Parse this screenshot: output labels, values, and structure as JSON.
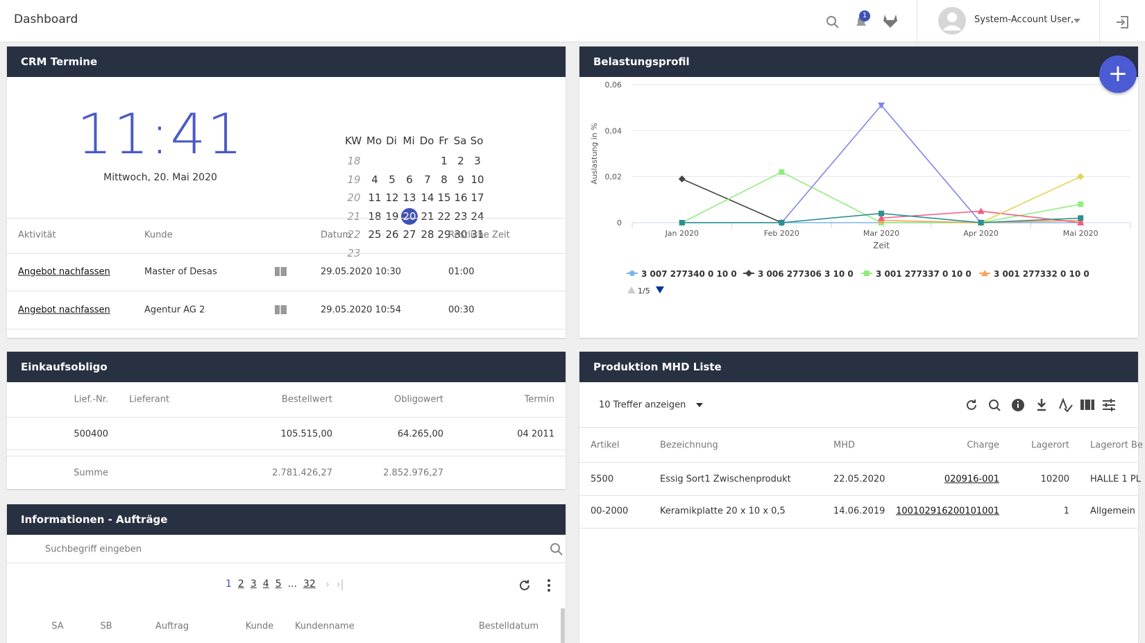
{
  "header": {
    "title": "Dashboard",
    "notification_count": "1",
    "user": "System-Account User,"
  },
  "crm": {
    "title": "CRM Termine",
    "time": "11:41",
    "date": "Mittwoch, 20. Mai 2020",
    "calendar": {
      "headers": [
        "KW",
        "Mo",
        "Di",
        "Mi",
        "Do",
        "Fr",
        "Sa",
        "So"
      ],
      "weeks": [
        [
          "18",
          null,
          null,
          null,
          null,
          "1",
          "2",
          "3"
        ],
        [
          "19",
          "4",
          "5",
          "6",
          "7",
          "8",
          "9",
          "10"
        ],
        [
          "20",
          "11",
          "12",
          "13",
          "14",
          "15",
          "16",
          "17"
        ],
        [
          "21",
          "18",
          "19",
          "20",
          "21",
          "22",
          "23",
          "24"
        ],
        [
          "22",
          "25",
          "26",
          "27",
          "28",
          "29",
          "30",
          "31"
        ],
        [
          "23",
          null,
          null,
          null,
          null,
          null,
          null,
          null
        ]
      ],
      "selected": "20"
    },
    "table": {
      "columns": [
        "Aktivität",
        "Kunde",
        "Datum",
        "Restliche Zeit"
      ],
      "rows": [
        [
          "Angebot nachfassen",
          "Master of Desas",
          "29.05.2020 10:30",
          "01:00"
        ],
        [
          "Angebot nachfassen",
          "Agentur AG 2",
          "29.05.2020 10:54",
          "00:30"
        ]
      ]
    }
  },
  "einkauf": {
    "title": "Einkaufsobligo",
    "columns": [
      "Lief.-Nr.",
      "Lieferant",
      "Bestellwert",
      "Obligowert",
      "Termin"
    ],
    "rows": [
      [
        "500400",
        null,
        "105.515,00",
        "64.265,00",
        "04 2011"
      ]
    ],
    "sum": [
      "Summe",
      null,
      "2.781.426,27",
      "2.852.976,27",
      null
    ]
  },
  "info": {
    "title": "Informationen - Aufträge",
    "search": "Suchbegriff eingeben",
    "pages": [
      "1",
      "2",
      "3",
      "4",
      "5",
      "...",
      "32"
    ],
    "columns": [
      "SA",
      "SB",
      "Auftrag",
      "Kunde",
      "Kundenname",
      "Bestelldatum"
    ]
  },
  "mhd": {
    "title": "Produktion MHD Liste",
    "page_size": "10 Treffer anzeigen",
    "columns": [
      "Artikel",
      "Bezeichnung",
      "MHD",
      "Charge",
      "Lagerort",
      "Lagerort Be"
    ],
    "rows": [
      [
        "5500",
        "Essig Sort1 Zwischenprodukt",
        "22.05.2020",
        "020916-001",
        "10200",
        "HALLE 1 PL"
      ],
      [
        "00-2000",
        "Keramikplatte 20 x 10 x 0,5",
        "14.06.2019",
        "100102916200101001",
        "1",
        "Allgemein"
      ]
    ]
  },
  "chart_data": {
    "type": "line",
    "title": "Belastungsprofil",
    "ylabel": "Auslastung in %",
    "xlabel": "Zeit",
    "categories": [
      "Jan 2020",
      "Feb 2020",
      "Mar 2020",
      "Apr 2020",
      "Mai 2020"
    ],
    "ylim": [
      0,
      0.06
    ],
    "yticks": [
      0,
      {
        "value": 0.02,
        "label": "0,02"
      },
      {
        "value": 0.04,
        "label": "0,04"
      },
      {
        "value": 0.06,
        "label": "0,06"
      }
    ],
    "grid": true,
    "legend_page": "1/5",
    "series": [
      {
        "name": "3 007 277340 0 10 0",
        "color": "#7cb5ec",
        "marker": "circle",
        "values": [
          0,
          0,
          0,
          0,
          0
        ]
      },
      {
        "name": "3 006 277306 3 10 0",
        "color": "#434348",
        "marker": "diamond",
        "values": [
          0.019,
          0,
          null,
          null,
          null
        ]
      },
      {
        "name": "3 001 277337 0 10 0",
        "color": "#90ed7d",
        "marker": "square",
        "values": [
          0,
          0.022,
          0,
          0,
          0.008
        ]
      },
      {
        "name": "3 001 277332 0 10 0",
        "color": "#f7a35c",
        "marker": "triangle",
        "values": [
          null,
          null,
          0.001,
          0,
          0.001
        ]
      },
      {
        "color": "#8085e9",
        "marker": "triangle-down",
        "values": [
          null,
          0,
          0.051,
          0,
          null
        ]
      },
      {
        "color": "#f15c80",
        "marker": "triangle",
        "values": [
          null,
          null,
          0.002,
          0.005,
          0
        ]
      },
      {
        "color": "#e4d354",
        "marker": "diamond",
        "values": [
          null,
          null,
          null,
          0,
          0.02
        ]
      },
      {
        "color": "#2b908f",
        "marker": "square",
        "values": [
          0,
          0,
          0.004,
          0,
          0.002
        ]
      }
    ]
  }
}
